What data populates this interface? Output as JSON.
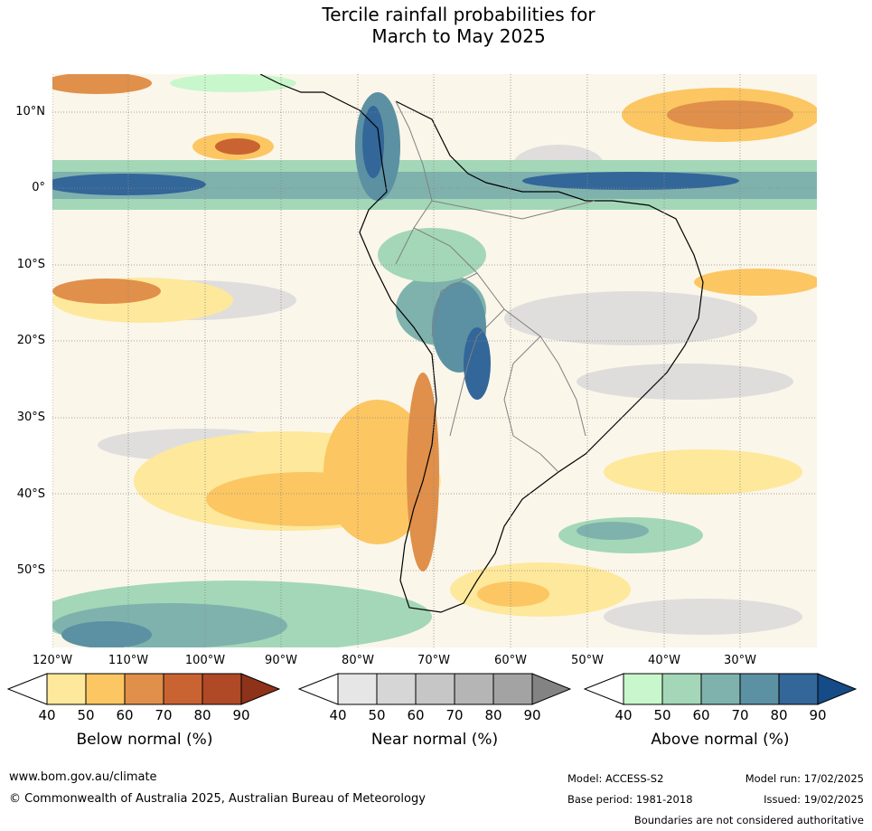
{
  "title_line1": "Tercile rainfall probabilities for",
  "title_line2": "March to May 2025",
  "lat_labels": [
    "10°N",
    "0°",
    "10°S",
    "20°S",
    "30°S",
    "40°S",
    "50°S"
  ],
  "lon_labels": [
    "120°W",
    "110°W",
    "100°W",
    "90°W",
    "80°W",
    "70°W",
    "60°W",
    "50°W",
    "40°W",
    "30°W"
  ],
  "colorbars": [
    {
      "title": "Below normal (%)",
      "ticks": [
        "40",
        "50",
        "60",
        "70",
        "80",
        "90"
      ],
      "colors": [
        "#ffffff",
        "#fee89b",
        "#fcc662",
        "#e0904a",
        "#c96432",
        "#b04a26",
        "#8f321a"
      ]
    },
    {
      "title": "Near normal (%)",
      "ticks": [
        "40",
        "50",
        "60",
        "70",
        "80",
        "90"
      ],
      "colors": [
        "#ffffff",
        "#e6e6e6",
        "#d6d6d6",
        "#c6c6c6",
        "#b5b5b5",
        "#a3a3a3",
        "#838383"
      ]
    },
    {
      "title": "Above normal (%)",
      "ticks": [
        "40",
        "50",
        "60",
        "70",
        "80",
        "90"
      ],
      "colors": [
        "#ffffff",
        "#c8f7cc",
        "#a3d7b8",
        "#7fb2ad",
        "#5c91a3",
        "#336699",
        "#154b86"
      ]
    }
  ],
  "footer": {
    "url": "www.bom.gov.au/climate",
    "copyright": "© Commonwealth of Australia 2025, Australian Bureau of Meteorology",
    "model": "Model: ACCESS-S2",
    "base_period": "Base period: 1981-2018",
    "model_run": "Model run: 17/02/2025",
    "issued": "Issued: 19/02/2025",
    "disclaimer": "Boundaries are not considered authoritative"
  }
}
